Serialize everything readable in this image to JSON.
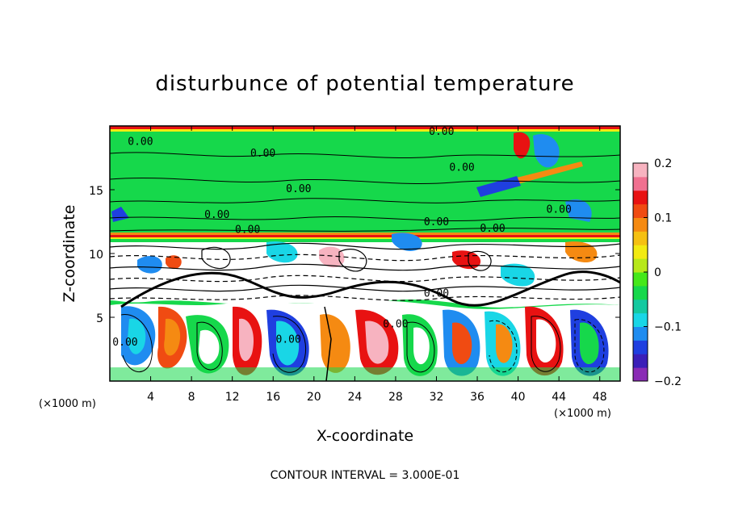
{
  "chart_data": {
    "type": "heatmap",
    "title": "disturbunce of potential temperature",
    "xlabel": "X-coordinate",
    "ylabel": "Z-coordinate",
    "x_unit": "(×1000 m)",
    "y_unit": "(×1000 m)",
    "xlim": [
      0,
      50
    ],
    "ylim": [
      0,
      20
    ],
    "x_ticks": [
      4,
      8,
      12,
      16,
      20,
      24,
      28,
      32,
      36,
      40,
      44,
      48
    ],
    "y_ticks": [
      5,
      10,
      15
    ],
    "colorbar": {
      "range": [
        -0.2,
        0.2
      ],
      "ticks": [
        {
          "value": 0.2,
          "label": "0.2"
        },
        {
          "value": 0.1,
          "label": "0.1"
        },
        {
          "value": 0,
          "label": "0"
        },
        {
          "value": -0.1,
          "label": "−0.1"
        },
        {
          "value": -0.2,
          "label": "−0.2"
        }
      ],
      "colors": [
        "#8a2bb5",
        "#3b1fb8",
        "#1f3fe0",
        "#1f8cf0",
        "#19d6e6",
        "#14c9a0",
        "#16d84b",
        "#45e81a",
        "#b7e81a",
        "#f2ea12",
        "#f5c012",
        "#f58a12",
        "#f04b12",
        "#e81212",
        "#f07090",
        "#f7b3c0"
      ]
    },
    "contour_interval": "CONTOUR INTERVAL = 3.000E-01",
    "contour_labels": [
      {
        "text": "0.00",
        "x": 3.0,
        "z": 18.5
      },
      {
        "text": "0.00",
        "x": 15.0,
        "z": 17.6
      },
      {
        "text": "0.00",
        "x": 18.5,
        "z": 14.8
      },
      {
        "text": "0.00",
        "x": 10.5,
        "z": 12.8
      },
      {
        "text": "0.00",
        "x": 13.5,
        "z": 11.6
      },
      {
        "text": "0.00",
        "x": 32.5,
        "z": 19.3
      },
      {
        "text": "0.00",
        "x": 34.5,
        "z": 16.5
      },
      {
        "text": "0.00",
        "x": 44.0,
        "z": 13.2
      },
      {
        "text": "0.00",
        "x": 32.0,
        "z": 12.2
      },
      {
        "text": "0.00",
        "x": 37.5,
        "z": 11.7
      },
      {
        "text": "0.00",
        "x": 32.0,
        "z": 6.6
      },
      {
        "text": "0.00",
        "x": 28.0,
        "z": 4.2
      },
      {
        "text": "0.00",
        "x": 1.5,
        "z": 2.8
      },
      {
        "text": "0.00",
        "x": 17.5,
        "z": 3.0
      }
    ]
  }
}
